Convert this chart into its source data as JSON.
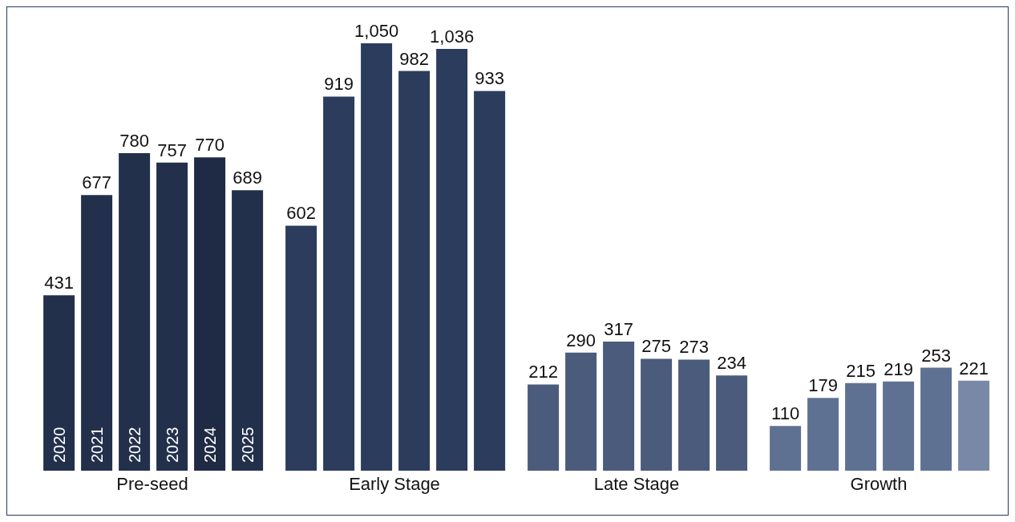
{
  "chart_data": {
    "type": "bar",
    "categories": [
      "Pre-seed",
      "Early Stage",
      "Late Stage",
      "Growth"
    ],
    "series": [
      {
        "name": "2020",
        "colors": [
          "#22304c",
          "#2b3c5c",
          "#4a5b7c",
          "#5f7193"
        ],
        "values": [
          431,
          602,
          212,
          110
        ],
        "value_labels": [
          "431",
          "602",
          "212",
          "110"
        ]
      },
      {
        "name": "2021",
        "colors": [
          "#22304c",
          "#2b3c5c",
          "#4a5b7c",
          "#5f7193"
        ],
        "values": [
          677,
          919,
          290,
          179
        ],
        "value_labels": [
          "677",
          "919",
          "290",
          "179"
        ]
      },
      {
        "name": "2022",
        "colors": [
          "#22304c",
          "#2b3c5c",
          "#4a5b7c",
          "#5f7193"
        ],
        "values": [
          780,
          1050,
          317,
          215
        ],
        "value_labels": [
          "780",
          "1,050",
          "317",
          "215"
        ]
      },
      {
        "name": "2023",
        "colors": [
          "#22304c",
          "#2b3c5c",
          "#4a5b7c",
          "#5f7193"
        ],
        "values": [
          757,
          982,
          275,
          219
        ],
        "value_labels": [
          "757",
          "982",
          "275",
          "219"
        ]
      },
      {
        "name": "2024",
        "colors": [
          "#1f2b45",
          "#2b3c5c",
          "#4a5b7c",
          "#5f7193"
        ],
        "values": [
          770,
          1036,
          273,
          253
        ],
        "value_labels": [
          "770",
          "1,036",
          "273",
          "253"
        ]
      },
      {
        "name": "2025",
        "colors": [
          "#22304c",
          "#2b3c5c",
          "#4a5b7c",
          "#7888a7"
        ],
        "values": [
          689,
          933,
          234,
          221
        ],
        "value_labels": [
          "689",
          "933",
          "234",
          "221"
        ]
      }
    ]
  }
}
